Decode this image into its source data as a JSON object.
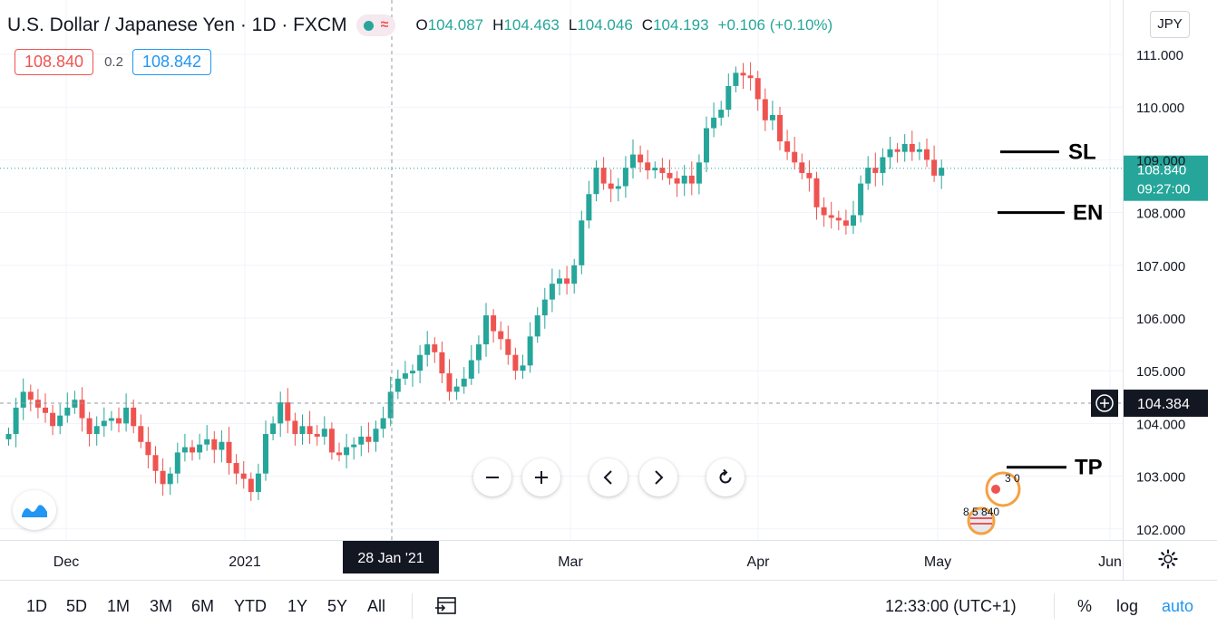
{
  "header": {
    "title": "U.S. Dollar / Japanese Yen · 1D · FXCM",
    "ohlc": {
      "o_label": "O",
      "o": "104.087",
      "h_label": "H",
      "h": "104.463",
      "l_label": "L",
      "l": "104.046",
      "c_label": "C",
      "c": "104.193",
      "change": "+0.106 (+0.10%)"
    },
    "status_wave": "≈"
  },
  "bidask": {
    "bid": "108.840",
    "spread": "0.2",
    "ask": "108.842"
  },
  "currency_button": "JPY",
  "price_labels": {
    "current_price": "108.840",
    "countdown": "09:27:00",
    "crosshair_price": "104.384",
    "crosshair_date": "28 Jan '21"
  },
  "annotations": [
    {
      "label": "SL"
    },
    {
      "label": "EN"
    },
    {
      "label": "TP"
    }
  ],
  "bottom_bar": {
    "ranges": [
      "1D",
      "5D",
      "1M",
      "3M",
      "6M",
      "YTD",
      "1Y",
      "5Y",
      "All"
    ],
    "time": "12:33:00 (UTC+1)",
    "percent_label": "%",
    "log_label": "log",
    "auto_label": "auto"
  },
  "overlay": {
    "top_text": "3 0",
    "bottom_text": "8 5 840"
  },
  "colors": {
    "up": "#26a69a",
    "down": "#ef5350",
    "accent": "#2196f3"
  },
  "chart_data": {
    "type": "candlestick",
    "symbol": "USDJPY",
    "interval": "1D",
    "yaxis": {
      "ticks": [
        102,
        103,
        104,
        105,
        106,
        107,
        108,
        109,
        110,
        111
      ],
      "tick_labels": [
        "102.000",
        "103.000",
        "104.000",
        "105.000",
        "106.000",
        "107.000",
        "108.000",
        "109.000",
        "110.000",
        "111.000"
      ]
    },
    "xaxis": {
      "tick_labels": [
        "Dec",
        "2021",
        "Mar",
        "Apr",
        "May",
        "Jun"
      ]
    },
    "grid": true,
    "current_price": 108.84,
    "crosshair": {
      "date": "28 Jan '21",
      "price": 104.384
    },
    "levels": [
      {
        "label": "SL",
        "price": 109.15
      },
      {
        "label": "EN",
        "price": 108.0
      },
      {
        "label": "TP",
        "price": 103.17
      }
    ],
    "closes": [
      103.8,
      104.3,
      104.6,
      104.45,
      104.3,
      104.2,
      103.95,
      104.15,
      104.3,
      104.45,
      104.1,
      103.8,
      103.95,
      104.05,
      104.1,
      104.0,
      104.3,
      103.95,
      103.65,
      103.4,
      103.1,
      102.85,
      103.05,
      103.45,
      103.55,
      103.45,
      103.6,
      103.7,
      103.5,
      103.65,
      103.25,
      103.05,
      102.95,
      102.7,
      103.05,
      103.8,
      104.0,
      104.4,
      104.05,
      103.8,
      103.95,
      103.8,
      103.75,
      103.9,
      103.45,
      103.4,
      103.55,
      103.6,
      103.75,
      103.65,
      103.9,
      104.1,
      104.6,
      104.85,
      104.95,
      105.0,
      105.3,
      105.5,
      105.35,
      104.95,
      104.6,
      104.7,
      104.85,
      105.2,
      105.5,
      106.05,
      105.75,
      105.6,
      105.3,
      105.0,
      105.1,
      105.65,
      106.05,
      106.35,
      106.65,
      106.75,
      106.65,
      107.0,
      107.85,
      108.35,
      108.85,
      108.55,
      108.45,
      108.5,
      108.85,
      109.1,
      108.95,
      108.8,
      108.85,
      108.75,
      108.65,
      108.55,
      108.7,
      108.55,
      108.95,
      109.6,
      109.8,
      109.95,
      110.4,
      110.65,
      110.6,
      110.55,
      110.15,
      109.75,
      109.85,
      109.35,
      109.15,
      108.95,
      108.75,
      108.65,
      108.1,
      107.95,
      107.9,
      107.85,
      107.75,
      107.95,
      108.55,
      108.85,
      108.75,
      109.05,
      109.2,
      109.15,
      109.3,
      109.15,
      109.2,
      109.0,
      108.7,
      108.85
    ]
  }
}
